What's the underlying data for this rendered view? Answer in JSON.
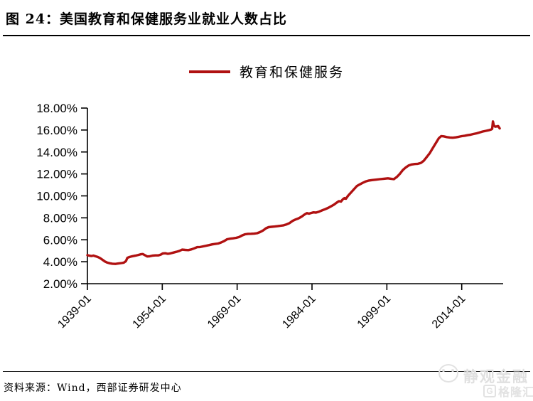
{
  "header": {
    "title": "图 24：美国教育和保健服务业就业人数占比"
  },
  "legend": {
    "label": "教育和保健服务"
  },
  "footer": {
    "source": "资料来源：Wind，西部证券研发中心"
  },
  "watermark": {
    "brand": "静观金融",
    "platform": "格隆汇",
    "logo_letter": "G"
  },
  "chart_data": {
    "type": "line",
    "title": "美国教育和保健服务业就业人数占比",
    "series_name": "教育和保健服务",
    "xlabel": "",
    "ylabel": "",
    "unit": "%",
    "line_color": "#b01111",
    "axis_color": "#000000",
    "grid": false,
    "legend_position": "top-center",
    "ylim": [
      2,
      18
    ],
    "xlim": [
      1939,
      2022.3
    ],
    "y_ticks": [
      {
        "value": 2,
        "label": "2.00%"
      },
      {
        "value": 4,
        "label": "4.00%"
      },
      {
        "value": 6,
        "label": "6.00%"
      },
      {
        "value": 8,
        "label": "8.00%"
      },
      {
        "value": 10,
        "label": "10.00%"
      },
      {
        "value": 12,
        "label": "12.00%"
      },
      {
        "value": 14,
        "label": "14.00%"
      },
      {
        "value": 16,
        "label": "16.00%"
      },
      {
        "value": 18,
        "label": "18.00%"
      }
    ],
    "x_ticks": [
      {
        "value": 1939,
        "label": "1939-01"
      },
      {
        "value": 1954,
        "label": "1954-01"
      },
      {
        "value": 1969,
        "label": "1969-01"
      },
      {
        "value": 1984,
        "label": "1984-01"
      },
      {
        "value": 1999,
        "label": "1999-01"
      },
      {
        "value": 2014,
        "label": "2014-01"
      }
    ],
    "points": [
      [
        1939.0,
        4.6
      ],
      [
        1939.4,
        4.55
      ],
      [
        1939.8,
        4.52
      ],
      [
        1940.2,
        4.56
      ],
      [
        1940.6,
        4.5
      ],
      [
        1941.0,
        4.45
      ],
      [
        1941.5,
        4.34
      ],
      [
        1942.0,
        4.18
      ],
      [
        1942.5,
        4.02
      ],
      [
        1943.0,
        3.92
      ],
      [
        1943.5,
        3.86
      ],
      [
        1944.0,
        3.82
      ],
      [
        1944.6,
        3.8
      ],
      [
        1945.2,
        3.84
      ],
      [
        1945.8,
        3.88
      ],
      [
        1946.3,
        3.92
      ],
      [
        1946.7,
        4.05
      ],
      [
        1947.0,
        4.35
      ],
      [
        1947.4,
        4.43
      ],
      [
        1948.0,
        4.5
      ],
      [
        1948.6,
        4.55
      ],
      [
        1949.2,
        4.62
      ],
      [
        1949.7,
        4.68
      ],
      [
        1950.1,
        4.7
      ],
      [
        1950.5,
        4.6
      ],
      [
        1951.0,
        4.48
      ],
      [
        1951.5,
        4.5
      ],
      [
        1952.0,
        4.55
      ],
      [
        1952.6,
        4.58
      ],
      [
        1953.2,
        4.58
      ],
      [
        1953.7,
        4.65
      ],
      [
        1954.1,
        4.75
      ],
      [
        1954.6,
        4.77
      ],
      [
        1955.1,
        4.72
      ],
      [
        1955.6,
        4.76
      ],
      [
        1956.2,
        4.83
      ],
      [
        1956.8,
        4.9
      ],
      [
        1957.4,
        4.98
      ],
      [
        1958.0,
        5.1
      ],
      [
        1958.6,
        5.08
      ],
      [
        1959.2,
        5.06
      ],
      [
        1959.8,
        5.12
      ],
      [
        1960.4,
        5.22
      ],
      [
        1961.0,
        5.33
      ],
      [
        1961.6,
        5.34
      ],
      [
        1962.2,
        5.4
      ],
      [
        1962.8,
        5.46
      ],
      [
        1963.4,
        5.52
      ],
      [
        1964.0,
        5.58
      ],
      [
        1964.6,
        5.62
      ],
      [
        1965.2,
        5.66
      ],
      [
        1965.8,
        5.76
      ],
      [
        1966.4,
        5.88
      ],
      [
        1967.0,
        6.05
      ],
      [
        1967.6,
        6.1
      ],
      [
        1968.2,
        6.13
      ],
      [
        1968.8,
        6.18
      ],
      [
        1969.4,
        6.25
      ],
      [
        1970.0,
        6.4
      ],
      [
        1970.6,
        6.5
      ],
      [
        1971.2,
        6.54
      ],
      [
        1971.8,
        6.55
      ],
      [
        1972.4,
        6.56
      ],
      [
        1973.0,
        6.6
      ],
      [
        1973.6,
        6.7
      ],
      [
        1974.2,
        6.85
      ],
      [
        1974.8,
        7.05
      ],
      [
        1975.3,
        7.15
      ],
      [
        1975.9,
        7.18
      ],
      [
        1976.5,
        7.21
      ],
      [
        1977.1,
        7.24
      ],
      [
        1977.7,
        7.28
      ],
      [
        1978.3,
        7.32
      ],
      [
        1978.9,
        7.4
      ],
      [
        1979.5,
        7.52
      ],
      [
        1980.1,
        7.72
      ],
      [
        1980.7,
        7.85
      ],
      [
        1981.3,
        7.95
      ],
      [
        1981.9,
        8.1
      ],
      [
        1982.5,
        8.3
      ],
      [
        1983.0,
        8.43
      ],
      [
        1983.4,
        8.38
      ],
      [
        1983.8,
        8.44
      ],
      [
        1984.3,
        8.5
      ],
      [
        1984.8,
        8.48
      ],
      [
        1985.4,
        8.56
      ],
      [
        1986.0,
        8.68
      ],
      [
        1986.6,
        8.78
      ],
      [
        1987.2,
        8.9
      ],
      [
        1987.8,
        9.05
      ],
      [
        1988.4,
        9.2
      ],
      [
        1989.0,
        9.4
      ],
      [
        1989.4,
        9.52
      ],
      [
        1989.8,
        9.48
      ],
      [
        1990.2,
        9.7
      ],
      [
        1990.5,
        9.8
      ],
      [
        1990.8,
        9.74
      ],
      [
        1991.2,
        10.0
      ],
      [
        1991.8,
        10.3
      ],
      [
        1992.4,
        10.6
      ],
      [
        1993.0,
        10.9
      ],
      [
        1993.6,
        11.05
      ],
      [
        1994.2,
        11.2
      ],
      [
        1994.8,
        11.32
      ],
      [
        1995.4,
        11.4
      ],
      [
        1996.0,
        11.44
      ],
      [
        1996.8,
        11.48
      ],
      [
        1997.6,
        11.52
      ],
      [
        1998.4,
        11.56
      ],
      [
        1999.2,
        11.6
      ],
      [
        1999.8,
        11.56
      ],
      [
        2000.4,
        11.52
      ],
      [
        2001.0,
        11.72
      ],
      [
        2001.6,
        12.0
      ],
      [
        2002.2,
        12.35
      ],
      [
        2002.8,
        12.6
      ],
      [
        2003.4,
        12.78
      ],
      [
        2004.0,
        12.86
      ],
      [
        2004.6,
        12.9
      ],
      [
        2005.2,
        12.92
      ],
      [
        2005.8,
        13.0
      ],
      [
        2006.4,
        13.2
      ],
      [
        2007.0,
        13.55
      ],
      [
        2007.6,
        13.9
      ],
      [
        2008.2,
        14.35
      ],
      [
        2008.8,
        14.8
      ],
      [
        2009.4,
        15.25
      ],
      [
        2009.9,
        15.45
      ],
      [
        2010.4,
        15.42
      ],
      [
        2011.0,
        15.36
      ],
      [
        2011.6,
        15.32
      ],
      [
        2012.2,
        15.3
      ],
      [
        2012.8,
        15.33
      ],
      [
        2013.4,
        15.38
      ],
      [
        2014.0,
        15.44
      ],
      [
        2014.6,
        15.48
      ],
      [
        2015.2,
        15.53
      ],
      [
        2015.8,
        15.58
      ],
      [
        2016.4,
        15.64
      ],
      [
        2017.0,
        15.7
      ],
      [
        2017.6,
        15.78
      ],
      [
        2018.2,
        15.86
      ],
      [
        2018.8,
        15.92
      ],
      [
        2019.4,
        15.98
      ],
      [
        2019.9,
        16.05
      ],
      [
        2020.1,
        16.1
      ],
      [
        2020.25,
        16.78
      ],
      [
        2020.45,
        16.4
      ],
      [
        2020.7,
        16.3
      ],
      [
        2021.0,
        16.33
      ],
      [
        2021.3,
        16.36
      ],
      [
        2021.6,
        16.15
      ]
    ]
  }
}
